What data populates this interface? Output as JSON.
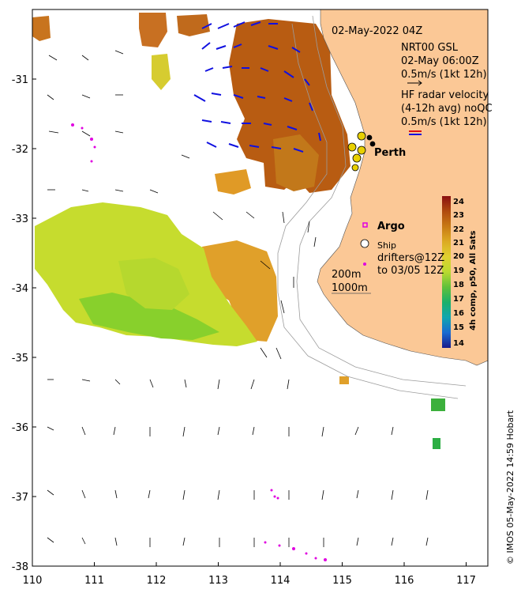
{
  "map": {
    "date_label": "02-May-2022 04Z",
    "model_title": "NRT00 GSL",
    "model_time": "02-May 06:00Z",
    "model_scale": "0.5m/s (1kt 12h)",
    "radar_title": "HF radar velocity",
    "radar_avg": "(4-12h avg) noQC",
    "radar_scale": "0.5m/s (1kt 12h)",
    "city_label": "Perth",
    "argo_label": "Argo",
    "ship_label": "Ship",
    "drifters_label_1": "drifters@12Z",
    "drifters_label_2": "to 03/05 12Z",
    "contour_label_1": "200m",
    "contour_label_2": "1000m",
    "colorbar_title": "4h comp, p50, All Sats",
    "colorbar_ticks": [
      "24",
      "23",
      "22",
      "21",
      "20",
      "19",
      "18",
      "17",
      "16",
      "15",
      "14"
    ],
    "credit": "© IMOS 05-May-2022 14:59 Hobart",
    "x_ticks": [
      "110",
      "111",
      "112",
      "113",
      "114",
      "115",
      "116",
      "117"
    ],
    "y_ticks": [
      "-31",
      "-32",
      "-33",
      "-34",
      "-35",
      "-36",
      "-37",
      "-38"
    ],
    "colors": {
      "land": "#fbc896",
      "radar_arrow": "#1010e0",
      "argo": "#e000e0",
      "drifter": "#e000e0"
    }
  }
}
